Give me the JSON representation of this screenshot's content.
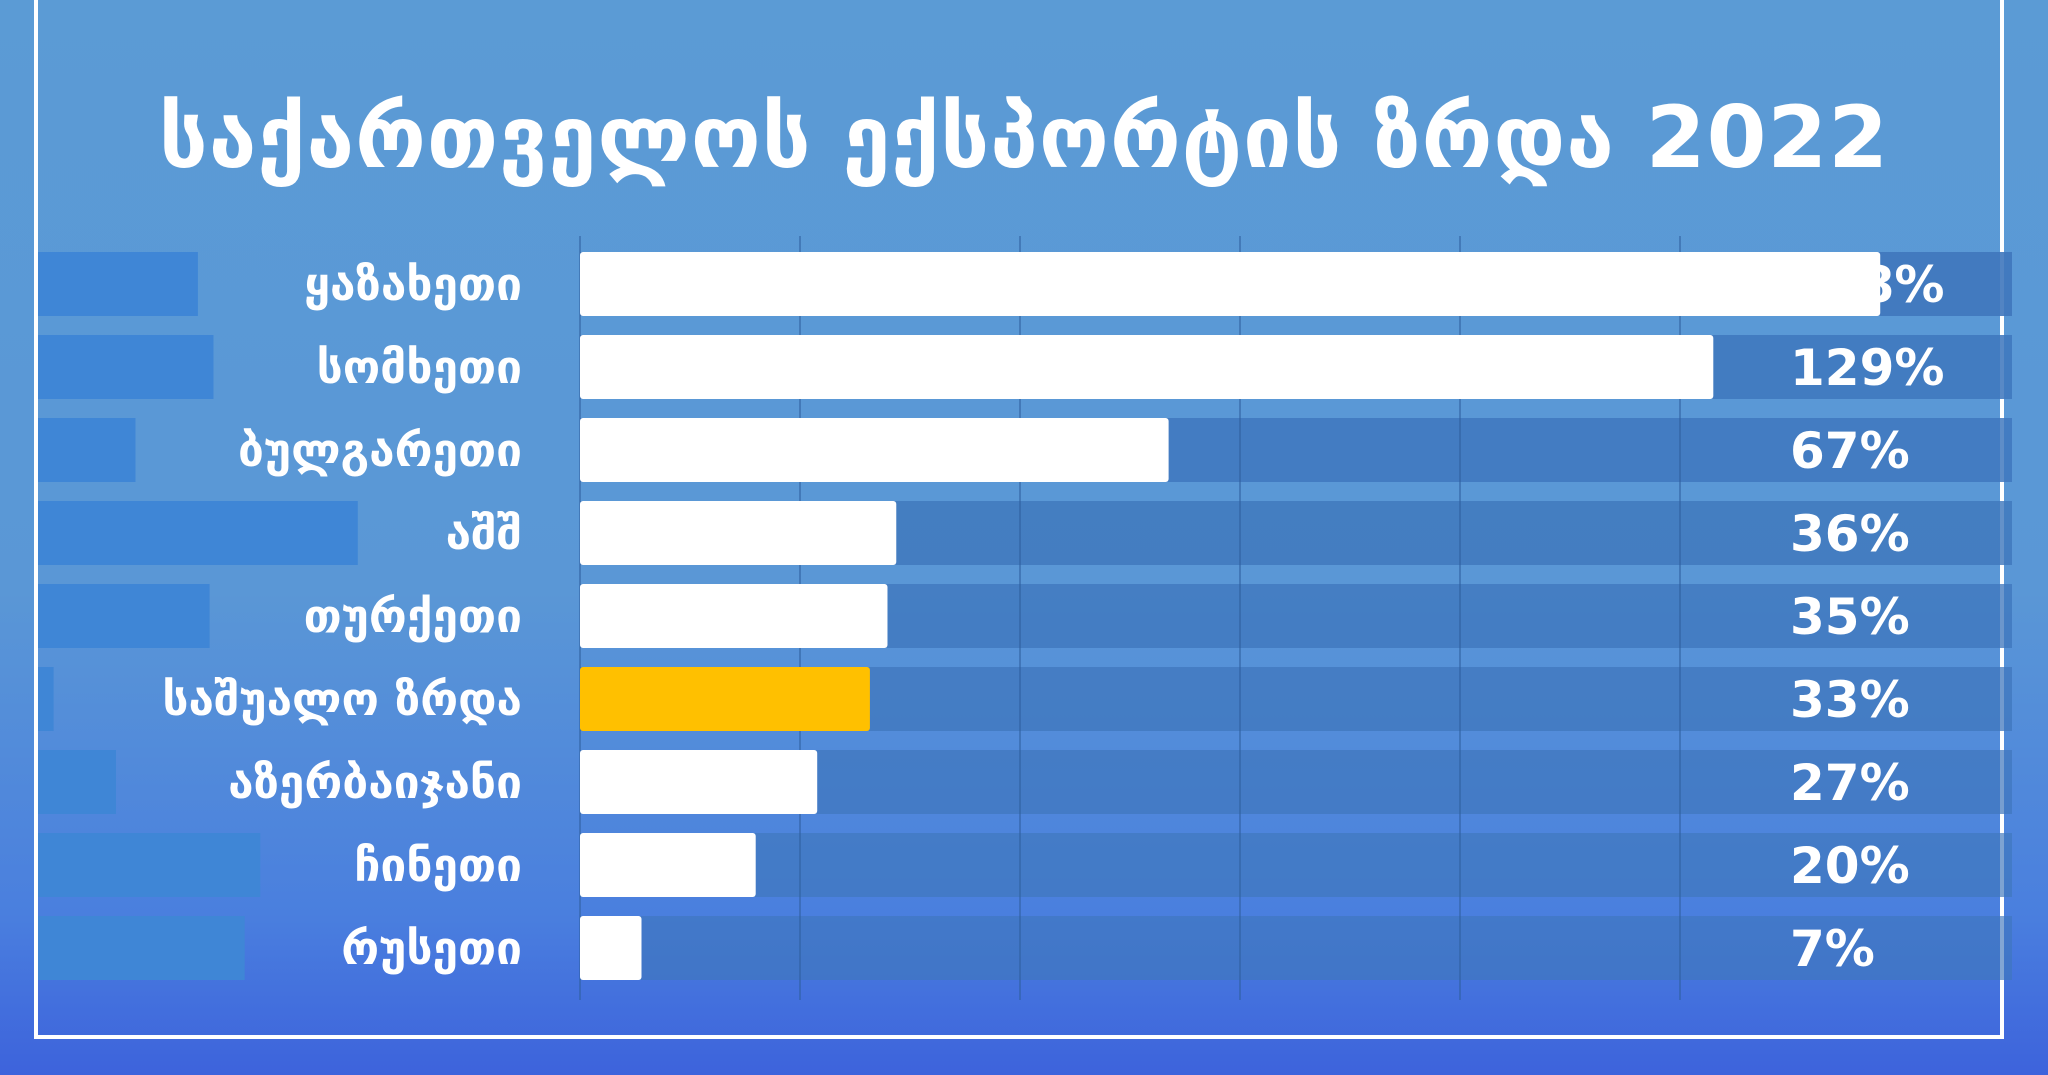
{
  "title": "საქართველოს ექსპორტის ზრდა  2022",
  "colors": {
    "bar": "#ffffff",
    "highlight": "#ffc000",
    "track": "#3f77bd",
    "left_band": "#3f86d6",
    "text": "#ffffff"
  },
  "chart_data": {
    "type": "bar",
    "orientation": "horizontal",
    "title": "საქართველოს ექსპორტის ზრდა  2022",
    "categories": [
      "ყაზახეთი",
      "სომხეთი",
      "ბულგარეთი",
      "აშშ",
      "თურქეთი",
      "საშუალო ზრდა",
      "აზერბაიჯანი",
      "ჩინეთი",
      "რუსეთი"
    ],
    "values": [
      148,
      129,
      67,
      36,
      35,
      33,
      27,
      20,
      7
    ],
    "value_labels": [
      "148%",
      "129%",
      "67%",
      "36%",
      "35%",
      "33%",
      "27%",
      "20%",
      "7%"
    ],
    "highlight_category": "საშუალო ზრდა",
    "unit": "%",
    "xlim": [
      0,
      163
    ],
    "grid": true,
    "legend": "none",
    "left_band_values": [
      0.41,
      0.45,
      0.25,
      0.82,
      0.44,
      0.04,
      0.2,
      0.57,
      0.53
    ]
  }
}
